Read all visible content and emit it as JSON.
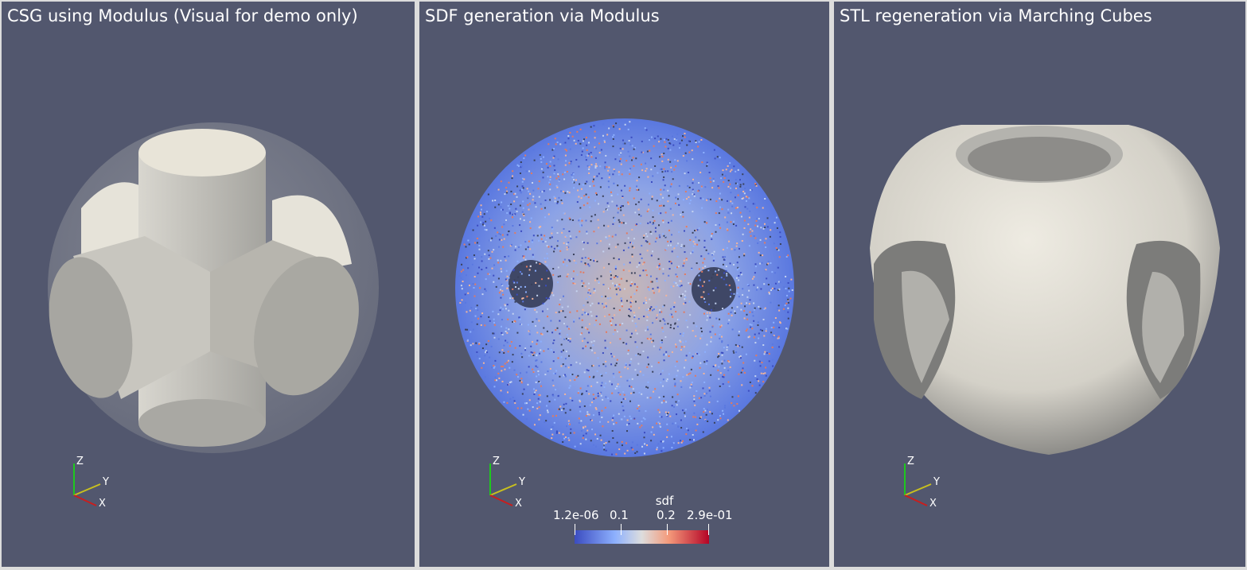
{
  "panels": [
    {
      "title": "CSG using Modulus (Visual for demo only)"
    },
    {
      "title": "SDF generation via Modulus"
    },
    {
      "title": "STL regeneration via Marching Cubes"
    }
  ],
  "axes": {
    "x": "X",
    "y": "Y",
    "z": "Z"
  },
  "colorbar": {
    "title": "sdf",
    "labels": [
      "1.2e-06",
      "0.1",
      "0.2",
      "2.9e-01"
    ],
    "colors": [
      "#3b4cc0",
      "#dddddd",
      "#b40426"
    ]
  }
}
